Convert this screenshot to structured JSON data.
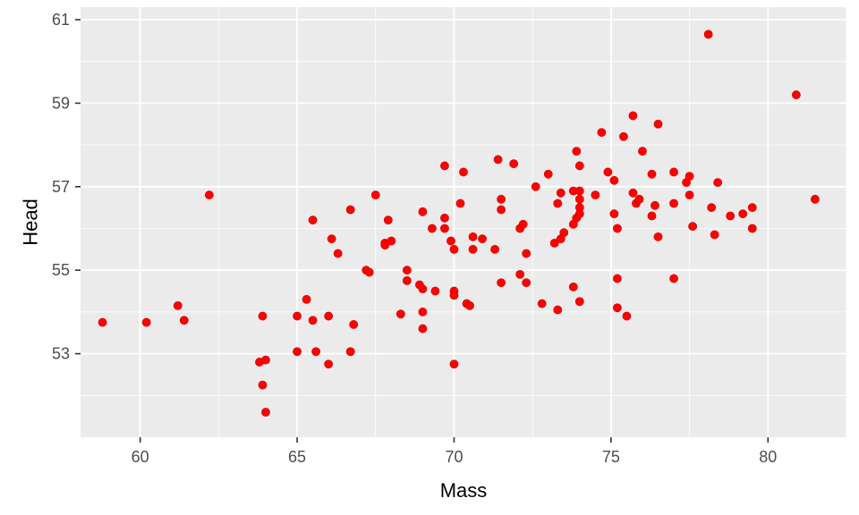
{
  "chart_data": {
    "type": "scatter",
    "xlabel": "Mass",
    "ylabel": "Head",
    "xlim": [
      58.1,
      82.5
    ],
    "ylim": [
      51.0,
      61.3
    ],
    "x_ticks": [
      60,
      65,
      70,
      75,
      80
    ],
    "y_ticks": [
      53,
      55,
      57,
      59,
      61
    ],
    "x_tick_labels": [
      "60",
      "65",
      "70",
      "75",
      "80"
    ],
    "y_tick_labels": [
      "53",
      "55",
      "57",
      "59",
      "61"
    ],
    "grid": true,
    "legend": "none",
    "colors": {
      "panel": "#ebebeb",
      "grid": "#ffffff",
      "point": "#ff0000",
      "tick": "#333333"
    },
    "points": [
      {
        "x": 58.8,
        "y": 53.75
      },
      {
        "x": 60.2,
        "y": 53.75
      },
      {
        "x": 61.2,
        "y": 54.15
      },
      {
        "x": 61.4,
        "y": 53.8
      },
      {
        "x": 62.2,
        "y": 56.8
      },
      {
        "x": 63.8,
        "y": 52.8
      },
      {
        "x": 63.9,
        "y": 53.9
      },
      {
        "x": 63.9,
        "y": 52.25
      },
      {
        "x": 64.0,
        "y": 52.85
      },
      {
        "x": 64.0,
        "y": 51.6
      },
      {
        "x": 65.0,
        "y": 53.9
      },
      {
        "x": 65.0,
        "y": 53.05
      },
      {
        "x": 65.3,
        "y": 54.3
      },
      {
        "x": 65.5,
        "y": 56.2
      },
      {
        "x": 65.5,
        "y": 53.8
      },
      {
        "x": 65.6,
        "y": 53.05
      },
      {
        "x": 66.0,
        "y": 53.9
      },
      {
        "x": 66.0,
        "y": 52.75
      },
      {
        "x": 66.1,
        "y": 55.75
      },
      {
        "x": 66.3,
        "y": 55.4
      },
      {
        "x": 66.7,
        "y": 56.45
      },
      {
        "x": 66.8,
        "y": 53.7
      },
      {
        "x": 66.7,
        "y": 53.05
      },
      {
        "x": 67.2,
        "y": 55.0
      },
      {
        "x": 67.3,
        "y": 54.95
      },
      {
        "x": 67.5,
        "y": 56.8
      },
      {
        "x": 67.8,
        "y": 55.65
      },
      {
        "x": 67.8,
        "y": 55.6
      },
      {
        "x": 67.9,
        "y": 56.2
      },
      {
        "x": 68.0,
        "y": 55.7
      },
      {
        "x": 68.3,
        "y": 53.95
      },
      {
        "x": 68.5,
        "y": 55.0
      },
      {
        "x": 68.5,
        "y": 54.75
      },
      {
        "x": 68.9,
        "y": 54.65
      },
      {
        "x": 69.0,
        "y": 56.4
      },
      {
        "x": 69.0,
        "y": 54.55
      },
      {
        "x": 69.0,
        "y": 54.0
      },
      {
        "x": 69.0,
        "y": 53.6
      },
      {
        "x": 69.3,
        "y": 56.0
      },
      {
        "x": 69.4,
        "y": 54.5
      },
      {
        "x": 69.7,
        "y": 57.5
      },
      {
        "x": 69.7,
        "y": 56.25
      },
      {
        "x": 69.7,
        "y": 56.0
      },
      {
        "x": 69.9,
        "y": 55.7
      },
      {
        "x": 70.0,
        "y": 55.5
      },
      {
        "x": 70.0,
        "y": 54.5
      },
      {
        "x": 70.0,
        "y": 54.4
      },
      {
        "x": 70.0,
        "y": 52.75
      },
      {
        "x": 70.2,
        "y": 56.6
      },
      {
        "x": 70.3,
        "y": 57.35
      },
      {
        "x": 70.4,
        "y": 54.2
      },
      {
        "x": 70.5,
        "y": 54.15
      },
      {
        "x": 70.6,
        "y": 55.8
      },
      {
        "x": 70.6,
        "y": 55.5
      },
      {
        "x": 70.9,
        "y": 55.75
      },
      {
        "x": 71.3,
        "y": 55.5
      },
      {
        "x": 71.4,
        "y": 57.65
      },
      {
        "x": 71.5,
        "y": 56.7
      },
      {
        "x": 71.5,
        "y": 56.45
      },
      {
        "x": 71.5,
        "y": 54.7
      },
      {
        "x": 71.9,
        "y": 57.55
      },
      {
        "x": 72.1,
        "y": 56.0
      },
      {
        "x": 72.1,
        "y": 54.9
      },
      {
        "x": 72.2,
        "y": 56.1
      },
      {
        "x": 72.3,
        "y": 55.4
      },
      {
        "x": 72.3,
        "y": 54.7
      },
      {
        "x": 72.6,
        "y": 57.0
      },
      {
        "x": 72.8,
        "y": 54.2
      },
      {
        "x": 73.0,
        "y": 57.3
      },
      {
        "x": 73.2,
        "y": 55.65
      },
      {
        "x": 73.3,
        "y": 56.6
      },
      {
        "x": 73.3,
        "y": 54.05
      },
      {
        "x": 73.4,
        "y": 56.85
      },
      {
        "x": 73.4,
        "y": 55.75
      },
      {
        "x": 73.5,
        "y": 55.9
      },
      {
        "x": 73.8,
        "y": 56.9
      },
      {
        "x": 73.8,
        "y": 56.1
      },
      {
        "x": 73.8,
        "y": 54.6
      },
      {
        "x": 73.9,
        "y": 57.85
      },
      {
        "x": 73.9,
        "y": 56.25
      },
      {
        "x": 74.0,
        "y": 57.5
      },
      {
        "x": 74.0,
        "y": 56.9
      },
      {
        "x": 74.0,
        "y": 56.7
      },
      {
        "x": 74.0,
        "y": 56.5
      },
      {
        "x": 74.0,
        "y": 56.35
      },
      {
        "x": 74.0,
        "y": 54.25
      },
      {
        "x": 74.5,
        "y": 56.8
      },
      {
        "x": 74.7,
        "y": 58.3
      },
      {
        "x": 74.9,
        "y": 57.35
      },
      {
        "x": 75.1,
        "y": 57.15
      },
      {
        "x": 75.1,
        "y": 56.35
      },
      {
        "x": 75.2,
        "y": 56.0
      },
      {
        "x": 75.2,
        "y": 54.8
      },
      {
        "x": 75.2,
        "y": 54.1
      },
      {
        "x": 75.4,
        "y": 58.2
      },
      {
        "x": 75.5,
        "y": 53.9
      },
      {
        "x": 75.7,
        "y": 58.7
      },
      {
        "x": 75.7,
        "y": 56.85
      },
      {
        "x": 75.8,
        "y": 56.6
      },
      {
        "x": 75.9,
        "y": 56.7
      },
      {
        "x": 76.0,
        "y": 57.85
      },
      {
        "x": 76.3,
        "y": 57.3
      },
      {
        "x": 76.3,
        "y": 56.3
      },
      {
        "x": 76.4,
        "y": 56.55
      },
      {
        "x": 76.5,
        "y": 58.5
      },
      {
        "x": 76.5,
        "y": 55.8
      },
      {
        "x": 77.0,
        "y": 57.35
      },
      {
        "x": 77.0,
        "y": 56.6
      },
      {
        "x": 77.0,
        "y": 54.8
      },
      {
        "x": 77.4,
        "y": 57.1
      },
      {
        "x": 77.5,
        "y": 57.25
      },
      {
        "x": 77.5,
        "y": 56.8
      },
      {
        "x": 77.6,
        "y": 56.05
      },
      {
        "x": 78.1,
        "y": 60.65
      },
      {
        "x": 78.2,
        "y": 56.5
      },
      {
        "x": 78.3,
        "y": 55.85
      },
      {
        "x": 78.4,
        "y": 57.1
      },
      {
        "x": 78.8,
        "y": 56.3
      },
      {
        "x": 79.2,
        "y": 56.35
      },
      {
        "x": 79.5,
        "y": 56.5
      },
      {
        "x": 79.5,
        "y": 56.0
      },
      {
        "x": 80.9,
        "y": 59.2
      },
      {
        "x": 81.5,
        "y": 56.7
      }
    ]
  }
}
